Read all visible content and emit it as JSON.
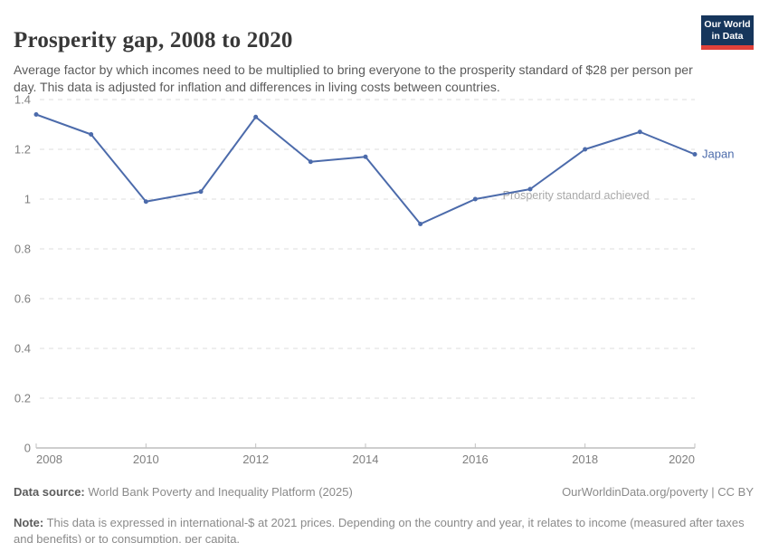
{
  "header": {
    "title": "Prosperity gap, 2008 to 2020",
    "subtitle": "Average factor by which incomes need to be multiplied to bring everyone to the prosperity standard of $28 per person per day. This data is adjusted for inflation and differences in living costs between countries.",
    "logo": {
      "line1": "Our World",
      "line2": "in Data",
      "bg_color": "#16365c",
      "accent_color": "#e0413a"
    }
  },
  "chart_data": {
    "type": "line",
    "title": "Prosperity gap, 2008 to 2020",
    "x": [
      2008,
      2009,
      2010,
      2011,
      2012,
      2013,
      2014,
      2015,
      2016,
      2017,
      2018,
      2019,
      2020
    ],
    "series": [
      {
        "name": "Japan",
        "color": "#4c6bab",
        "values": [
          1.34,
          1.26,
          0.99,
          1.03,
          1.33,
          1.15,
          1.17,
          0.9,
          1.0,
          1.04,
          1.2,
          1.27,
          1.18
        ]
      }
    ],
    "xlim": [
      2008,
      2020
    ],
    "ylim": [
      0,
      1.4
    ],
    "xticks": [
      2008,
      2010,
      2012,
      2014,
      2016,
      2018,
      2020
    ],
    "yticks": [
      0,
      0.2,
      0.4,
      0.6,
      0.8,
      1,
      1.2,
      1.4
    ],
    "grid": true,
    "grid_color": "#dcdcdc",
    "axis_color": "#9e9e9e",
    "tick_color": "#c2c2c2",
    "tick_label_color": "#7f7f7f",
    "legend_position": "end-of-line",
    "annotation": {
      "text": "Prosperity standard achieved",
      "x": 2016.5,
      "y": 1,
      "color": "#a9a9a9"
    }
  },
  "footer": {
    "data_source_label": "Data source:",
    "data_source": " World Bank Poverty and Inequality Platform (2025)",
    "link": "OurWorldinData.org/poverty | CC BY",
    "note_label": "Note:",
    "note": " This data is expressed in international-$ at 2021 prices. Depending on the country and year, it relates to income (measured after taxes and benefits) or to consumption, per capita."
  }
}
